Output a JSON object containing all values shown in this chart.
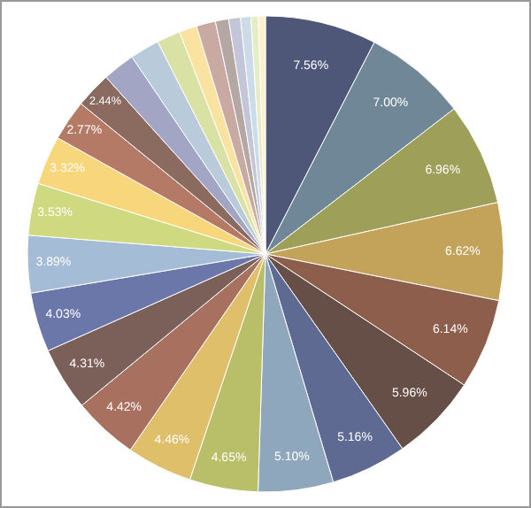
{
  "chart_data": {
    "type": "pie",
    "categories": [
      null,
      null,
      null,
      null,
      null,
      null,
      null,
      null,
      null,
      null,
      null,
      null,
      null,
      null,
      null,
      null,
      null,
      null,
      null,
      null,
      null,
      null,
      null,
      null,
      null,
      null,
      null,
      null
    ],
    "values": [
      7.56,
      7.0,
      6.96,
      6.62,
      6.14,
      5.96,
      5.16,
      5.1,
      4.65,
      4.46,
      4.42,
      4.31,
      4.03,
      3.89,
      3.53,
      3.32,
      2.77,
      2.44,
      2.2,
      2.0,
      1.6,
      1.2,
      1.3,
      0.9,
      0.8,
      0.7,
      0.5,
      0.48
    ],
    "value_labels": [
      "7.56%",
      "7.00%",
      "6.96%",
      "6.62%",
      "6.14%",
      "5.96%",
      "5.16%",
      "5.10%",
      "4.65%",
      "4.46%",
      "4.42%",
      "4.31%",
      "4.03%",
      "3.89%",
      "3.53%",
      "3.32%",
      "2.77%",
      "2.44%",
      null,
      null,
      null,
      null,
      null,
      null,
      null,
      null,
      null,
      null
    ],
    "colors": [
      "#4f5779",
      "#708797",
      "#9e9f59",
      "#c3a35a",
      "#8c5e4b",
      "#664f47",
      "#5f6a92",
      "#8fa7bd",
      "#b9bf69",
      "#dfbf69",
      "#a8705f",
      "#7a6058",
      "#6a77a8",
      "#a4bcd6",
      "#cfd97f",
      "#f8d77c",
      "#b47a66",
      "#8b6b60",
      "#a2a6c4",
      "#b9cadb",
      "#d9e2a4",
      "#fae2a0",
      "#c9aaa3",
      "#b5a8a4",
      "#c2c6d8",
      "#ccdbe8",
      "#e6ecc4",
      "#fdf0cc"
    ],
    "legend": false
  }
}
